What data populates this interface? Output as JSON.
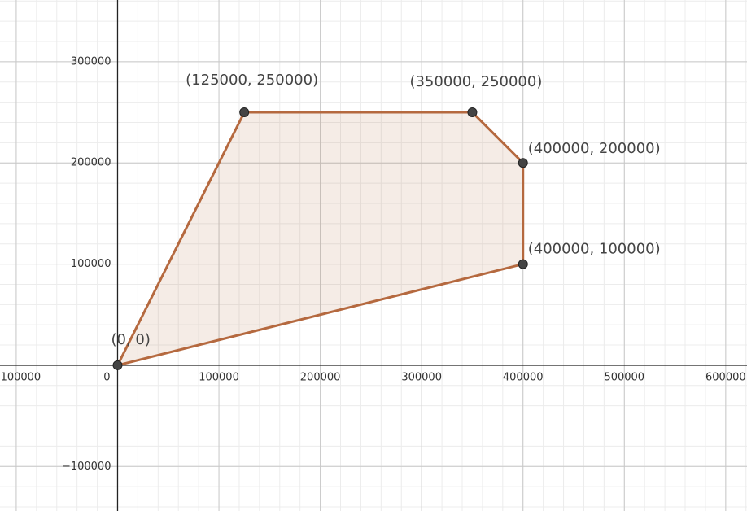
{
  "chart_data": {
    "type": "polygon",
    "points": [
      {
        "x": 0,
        "y": 0,
        "label": "(0, 0)"
      },
      {
        "x": 125000,
        "y": 250000,
        "label": "(125000, 250000)"
      },
      {
        "x": 350000,
        "y": 250000,
        "label": "(350000, 250000)"
      },
      {
        "x": 400000,
        "y": 200000,
        "label": "(400000, 200000)"
      },
      {
        "x": 400000,
        "y": 100000,
        "label": "(400000, 100000)"
      }
    ],
    "color": "#b5693f",
    "xlim": [
      -116000,
      621000
    ],
    "ylim": [
      -144000,
      361000
    ],
    "xticks": [
      {
        "value": -100000,
        "label": "−100000"
      },
      0,
      100000,
      200000,
      300000,
      400000,
      500000,
      600000
    ],
    "yticks": [
      {
        "value": -100000,
        "label": "−100000"
      },
      100000,
      200000,
      300000
    ],
    "grid": true
  }
}
